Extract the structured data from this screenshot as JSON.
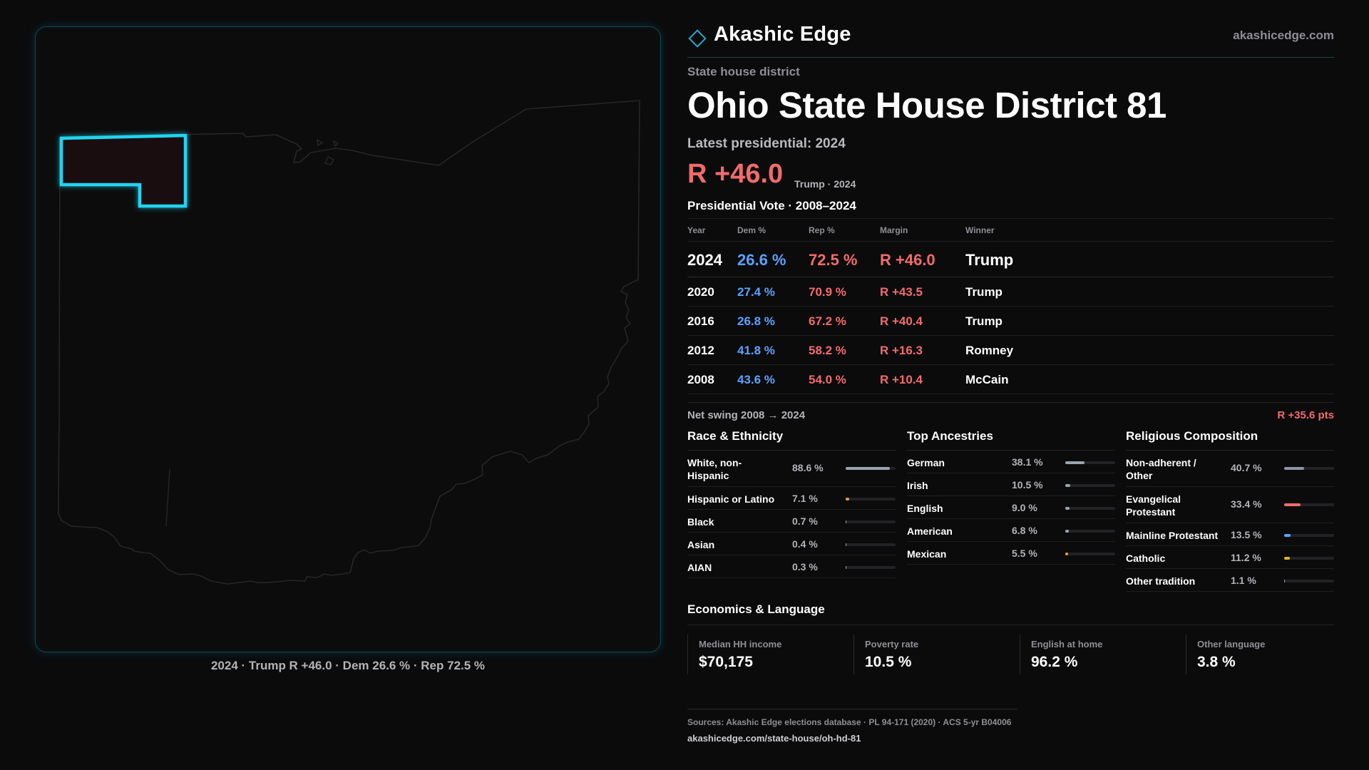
{
  "map": {
    "caption": "2024 · Trump R +46.0 · Dem 26.6 % · Rep 72.5 %",
    "district_highlight_color": "#20d4f0",
    "district_fill_color": "#1a0d0f"
  },
  "header": {
    "brand": "Akashic Edge",
    "site": "akashicedge.com"
  },
  "district": {
    "type_label": "State house district",
    "title": "Ohio State House District 81",
    "latest_label": "Latest presidential: 2024",
    "margin": "R +46.0",
    "margin_note": "Trump · 2024"
  },
  "presidential": {
    "title": "Presidential Vote · 2008–2024",
    "columns": [
      "Year",
      "Dem %",
      "Rep %",
      "Margin",
      "Winner"
    ],
    "rows": [
      {
        "year": "2024",
        "dem": "26.6 %",
        "rep": "72.5 %",
        "margin": "R +46.0",
        "winner": "Trump"
      },
      {
        "year": "2020",
        "dem": "27.4 %",
        "rep": "70.9 %",
        "margin": "R +43.5",
        "winner": "Trump"
      },
      {
        "year": "2016",
        "dem": "26.8 %",
        "rep": "67.2 %",
        "margin": "R +40.4",
        "winner": "Trump"
      },
      {
        "year": "2012",
        "dem": "41.8 %",
        "rep": "58.2 %",
        "margin": "R +16.3",
        "winner": "Romney"
      },
      {
        "year": "2008",
        "dem": "43.6 %",
        "rep": "54.0 %",
        "margin": "R +10.4",
        "winner": "McCain"
      }
    ],
    "swing_label": "Net swing 2008 → 2024",
    "swing_value": "R +35.6 pts"
  },
  "race": {
    "title": "Race & Ethnicity",
    "items": [
      {
        "label": "White, non-Hispanic",
        "value": "88.6 %",
        "pct": 88.6,
        "color": "#9aa4b0"
      },
      {
        "label": "Hispanic or Latino",
        "value": "7.1 %",
        "pct": 7.1,
        "color": "#e0a030"
      },
      {
        "label": "Black",
        "value": "0.7 %",
        "pct": 0.7,
        "color": "#9aa4b0"
      },
      {
        "label": "Asian",
        "value": "0.4 %",
        "pct": 0.4,
        "color": "#9aa4b0"
      },
      {
        "label": "AIAN",
        "value": "0.3 %",
        "pct": 0.3,
        "color": "#9aa4b0"
      }
    ]
  },
  "ancestry": {
    "title": "Top Ancestries",
    "items": [
      {
        "label": "German",
        "value": "38.1 %",
        "pct": 38.1,
        "color": "#9aa4b0"
      },
      {
        "label": "Irish",
        "value": "10.5 %",
        "pct": 10.5,
        "color": "#9aa4b0"
      },
      {
        "label": "English",
        "value": "9.0 %",
        "pct": 9.0,
        "color": "#9aa4b0"
      },
      {
        "label": "American",
        "value": "6.8 %",
        "pct": 6.8,
        "color": "#9aa4b0"
      },
      {
        "label": "Mexican",
        "value": "5.5 %",
        "pct": 5.5,
        "color": "#e0a030"
      }
    ]
  },
  "religion": {
    "title": "Religious Composition",
    "items": [
      {
        "label": "Non-adherent / Other",
        "value": "40.7 %",
        "pct": 40.7,
        "color": "#8d96a3"
      },
      {
        "label": "Evangelical Protestant",
        "value": "33.4 %",
        "pct": 33.4,
        "color": "#f26b6b"
      },
      {
        "label": "Mainline Protestant",
        "value": "13.5 %",
        "pct": 13.5,
        "color": "#5ba2ff"
      },
      {
        "label": "Catholic",
        "value": "11.2 %",
        "pct": 11.2,
        "color": "#e0b030"
      },
      {
        "label": "Other tradition",
        "value": "1.1 %",
        "pct": 1.1,
        "color": "#9aa4b0"
      }
    ]
  },
  "economics": {
    "title": "Economics & Language",
    "cells": [
      {
        "label": "Median HH income",
        "value": "$70,175"
      },
      {
        "label": "Poverty rate",
        "value": "10.5 %"
      },
      {
        "label": "English at home",
        "value": "96.2 %"
      },
      {
        "label": "Other language",
        "value": "3.8 %"
      }
    ]
  },
  "footer": {
    "sources": "Sources: Akashic Edge elections database · PL 94-171 (2020) · ACS 5-yr B04006",
    "url": "akashicedge.com/state-house/oh-hd-81"
  },
  "colors": {
    "dem": "#5ba2ff",
    "rep": "#f26b6b",
    "accent": "#20d4f0"
  }
}
